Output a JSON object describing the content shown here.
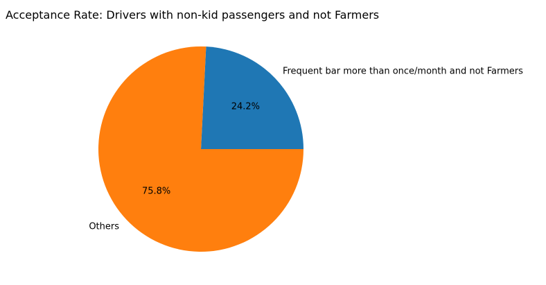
{
  "chart_data": {
    "type": "pie",
    "title": "Acceptance Rate: Drivers with non-kid passengers and not Farmers",
    "slices": [
      {
        "label": "Frequent bar more than once/month and not Farmers",
        "value": 24.2,
        "pct_label": "24.2%",
        "color": "#1f77b4"
      },
      {
        "label": "Others",
        "value": 75.8,
        "pct_label": "75.8%",
        "color": "#ff7f0e"
      }
    ]
  }
}
